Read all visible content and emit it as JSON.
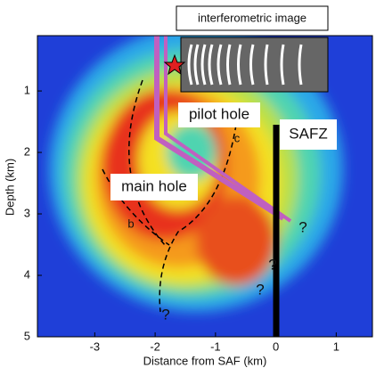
{
  "chart_data": {
    "type": "heatmap",
    "xlabel": "Distance from SAF (km)",
    "ylabel": "Depth (km)",
    "xlim": [
      -3.95,
      1.6
    ],
    "xticks": [
      -3,
      -2,
      -1,
      0,
      1
    ],
    "ylim": [
      0.1,
      5
    ],
    "yticks": [
      1,
      2,
      3,
      4,
      5
    ],
    "yinvert": true,
    "annotations": [
      "interferometric image",
      "pilot hole",
      "SAFZ",
      "main hole",
      "b",
      "c",
      "?",
      "?",
      "?",
      "?"
    ]
  }
}
